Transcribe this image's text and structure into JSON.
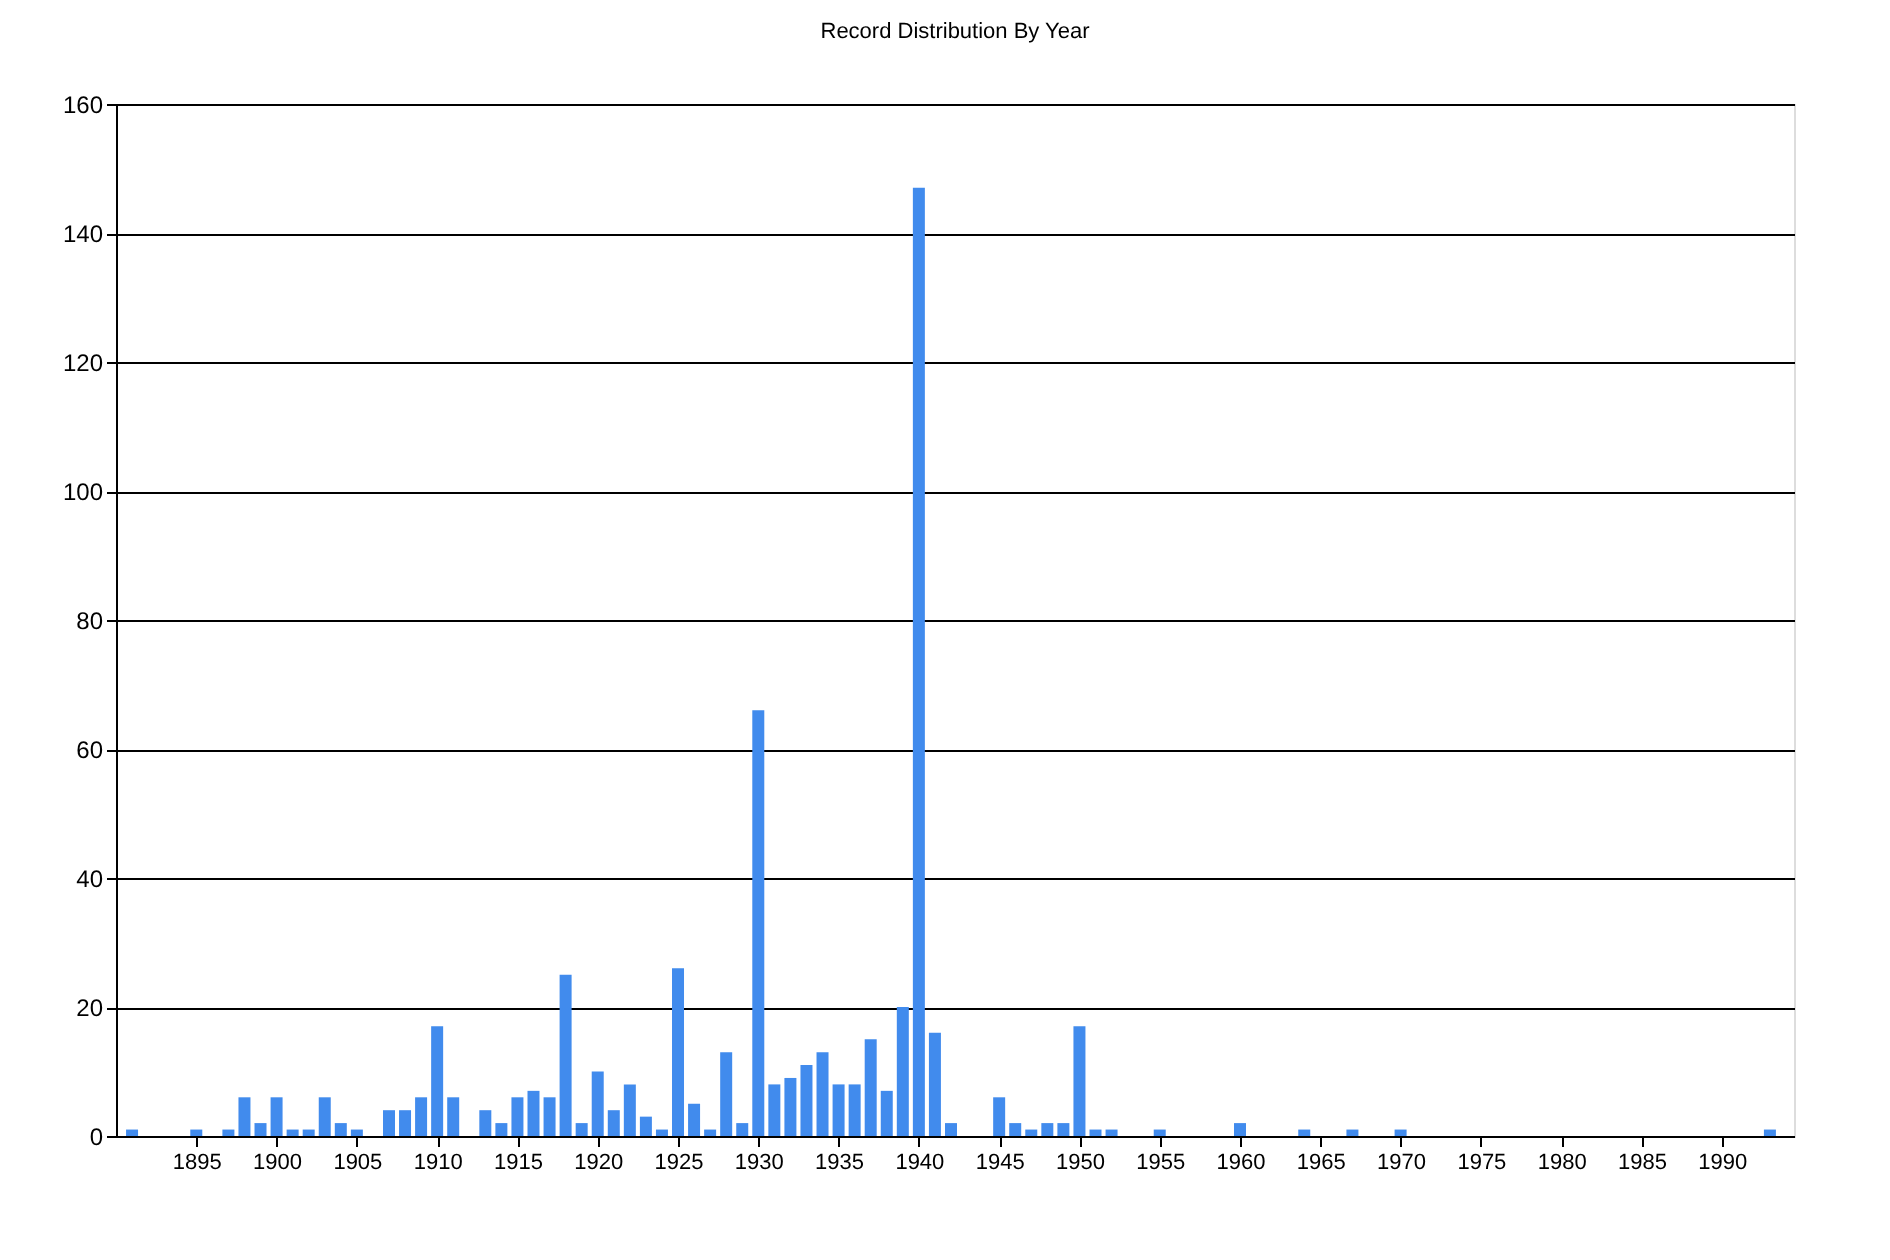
{
  "chart_data": {
    "type": "bar",
    "title": "Record Distribution By Year",
    "x": [
      1891,
      1895,
      1897,
      1898,
      1899,
      1900,
      1901,
      1902,
      1903,
      1904,
      1905,
      1907,
      1908,
      1909,
      1910,
      1911,
      1913,
      1914,
      1915,
      1916,
      1917,
      1918,
      1919,
      1920,
      1921,
      1922,
      1923,
      1924,
      1925,
      1926,
      1927,
      1928,
      1929,
      1930,
      1931,
      1932,
      1933,
      1934,
      1935,
      1936,
      1937,
      1938,
      1939,
      1940,
      1941,
      1942,
      1945,
      1946,
      1947,
      1948,
      1949,
      1950,
      1951,
      1952,
      1955,
      1960,
      1964,
      1967,
      1970,
      1993
    ],
    "series": [
      {
        "color": "#418bed",
        "values": [
          1,
          1,
          1,
          6,
          2,
          6,
          1,
          1,
          6,
          2,
          1,
          4,
          4,
          6,
          17,
          6,
          4,
          2,
          6,
          7,
          6,
          25,
          2,
          10,
          4,
          8,
          3,
          1,
          26,
          5,
          1,
          13,
          2,
          66,
          8,
          9,
          11,
          13,
          8,
          8,
          15,
          7,
          20,
          147,
          16,
          2,
          6,
          2,
          1,
          2,
          2,
          17,
          1,
          1,
          1,
          2,
          1,
          1,
          1,
          1
        ]
      }
    ],
    "xlim": [
      1890,
      1994.5
    ],
    "xticks": [
      1895,
      1900,
      1905,
      1910,
      1915,
      1920,
      1925,
      1930,
      1935,
      1940,
      1945,
      1950,
      1955,
      1960,
      1965,
      1970,
      1975,
      1980,
      1985,
      1990
    ],
    "ylim": [
      0,
      160
    ],
    "yticks": [
      0,
      20,
      40,
      60,
      80,
      100,
      120,
      140,
      160
    ],
    "grid": "y"
  }
}
